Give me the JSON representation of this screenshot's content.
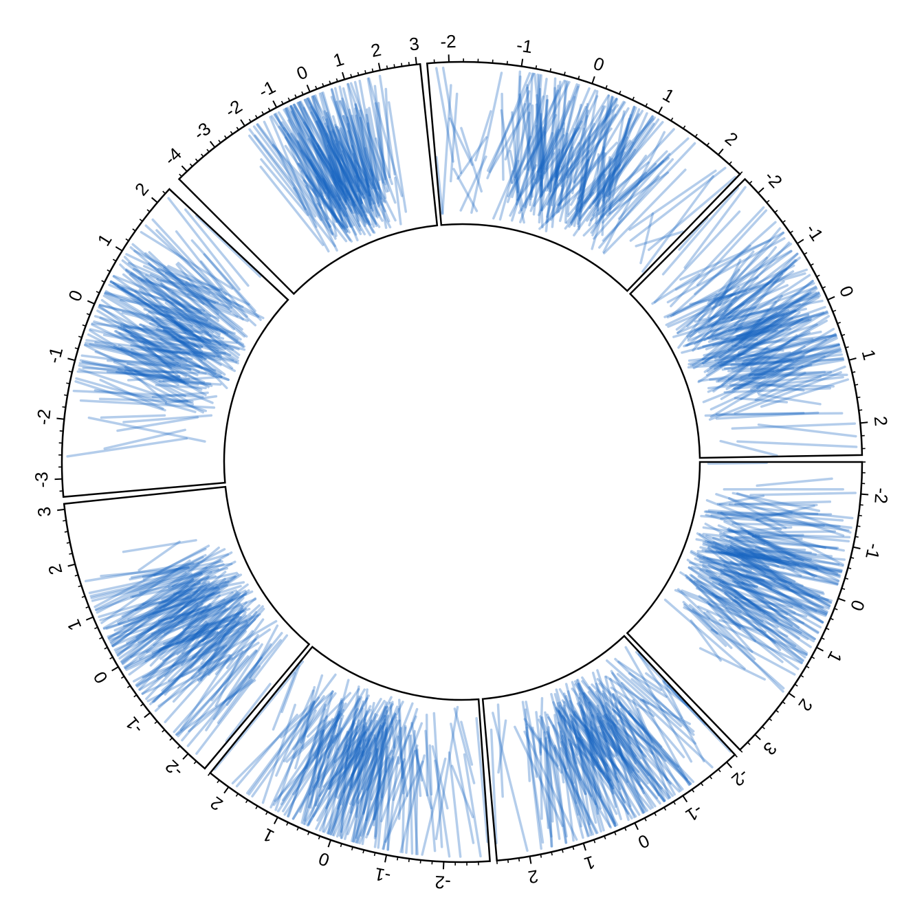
{
  "chart_data": {
    "type": "circular-segments",
    "title": "",
    "grid": false,
    "segment_color": "#1565C0",
    "sectors": [
      {
        "id": "s1",
        "start_deg": -45,
        "end_deg": -6,
        "xlim": [
          -4.3,
          3.1
        ],
        "ticks": [
          "-4",
          "-3",
          "-2",
          "-1",
          "0",
          "1",
          "2",
          "3"
        ],
        "tick_values": [
          -4,
          -3,
          -2,
          -1,
          0,
          1,
          2,
          3
        ]
      },
      {
        "id": "s2",
        "start_deg": -5,
        "end_deg": 44,
        "xlim": [
          -2.3,
          2.4
        ],
        "ticks": [
          "-2",
          "-1",
          "0",
          "1",
          "2"
        ],
        "tick_values": [
          -2,
          -1,
          0,
          1,
          2
        ]
      },
      {
        "id": "s3",
        "start_deg": 45,
        "end_deg": 89,
        "xlim": [
          -2.3,
          2.5
        ],
        "ticks": [
          "-2",
          "-1",
          "0",
          "1",
          "2"
        ],
        "tick_values": [
          -2,
          -1,
          0,
          1,
          2
        ]
      },
      {
        "id": "s4",
        "start_deg": 90,
        "end_deg": 136,
        "xlim": [
          -2.6,
          3.4
        ],
        "ticks": [
          "-2",
          "-1",
          "0",
          "1",
          "2",
          "3"
        ],
        "tick_values": [
          -2,
          -1,
          0,
          1,
          2,
          3
        ]
      },
      {
        "id": "s5",
        "start_deg": 137,
        "end_deg": 175,
        "xlim": [
          -2.2,
          2.6
        ],
        "ticks": [
          "-2",
          "-1",
          "0",
          "1",
          "2"
        ],
        "tick_values": [
          -2,
          -1,
          0,
          1,
          2
        ]
      },
      {
        "id": "s6",
        "start_deg": 176,
        "end_deg": 219,
        "xlim": [
          -2.8,
          2.4
        ],
        "ticks": [
          "-2",
          "-1",
          "0",
          "1",
          "2"
        ],
        "tick_values": [
          -2,
          -1,
          0,
          1,
          2
        ]
      },
      {
        "id": "s7",
        "start_deg": 220,
        "end_deg": 264,
        "xlim": [
          -2.4,
          3.1
        ],
        "ticks": [
          "-2",
          "-1",
          "0",
          "1",
          "2",
          "3"
        ],
        "tick_values": [
          -2,
          -1,
          0,
          1,
          2,
          3
        ]
      },
      {
        "id": "s8",
        "start_deg": 265,
        "end_deg": 313,
        "xlim": [
          -3.3,
          2.3
        ],
        "ticks": [
          "-3",
          "-2",
          "-1",
          "0",
          "1",
          "2"
        ],
        "tick_values": [
          -3,
          -2,
          -1,
          0,
          1,
          2
        ]
      }
    ]
  }
}
